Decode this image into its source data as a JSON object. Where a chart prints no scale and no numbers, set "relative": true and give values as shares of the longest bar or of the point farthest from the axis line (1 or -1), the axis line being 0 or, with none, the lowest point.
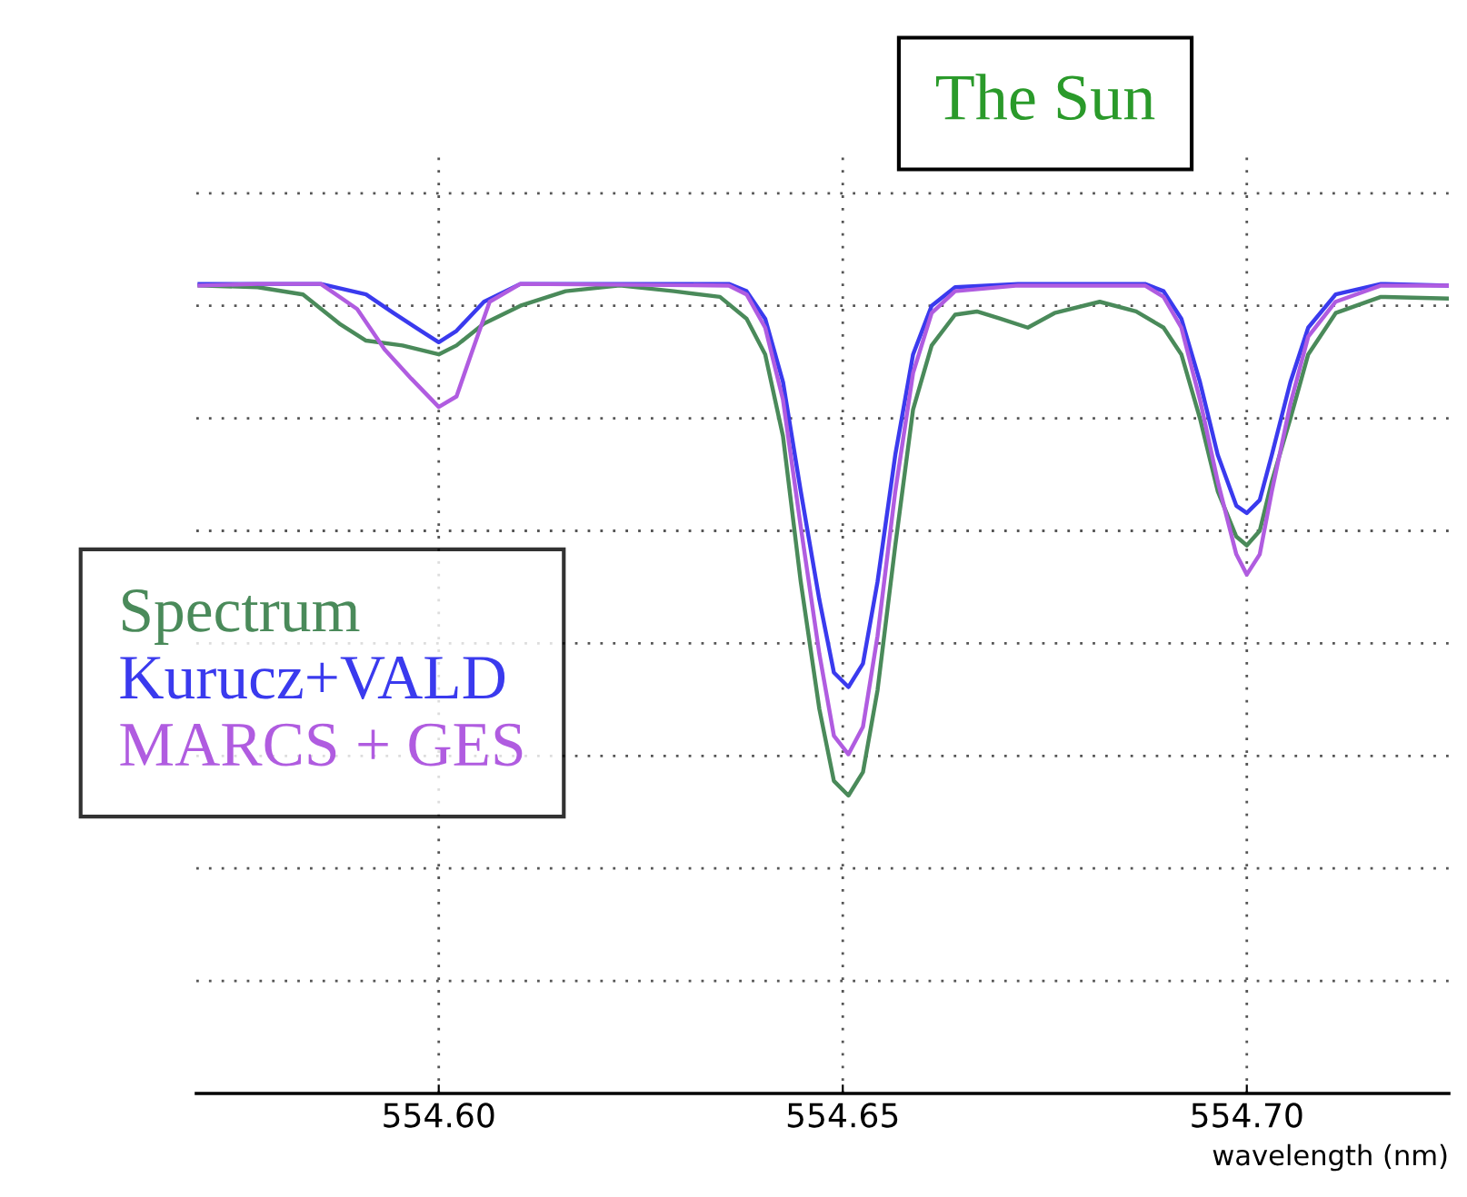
{
  "chart_data": {
    "type": "line",
    "title": "The Sun",
    "xlabel": "wavelength (nm)",
    "relative": true,
    "xlim": [
      554.57,
      554.725
    ],
    "xticks": [
      {
        "value": 554.6,
        "label": "554.60"
      },
      {
        "value": 554.65,
        "label": "554.65"
      },
      {
        "value": 554.7,
        "label": "554.70"
      }
    ],
    "grid": true,
    "legend": "left",
    "tick_labels": "x",
    "series": [
      {
        "name": "Spectrum",
        "color": "#4a8a5a",
        "x": [
          554.5704,
          554.5776,
          554.5832,
          554.5877,
          554.591,
          554.5955,
          554.6,
          554.6022,
          554.6056,
          554.6101,
          554.6157,
          554.6224,
          554.6291,
          554.6348,
          554.6381,
          554.6404,
          554.6426,
          554.6448,
          554.6471,
          554.6489,
          554.6507,
          554.6525,
          554.6543,
          554.6565,
          554.6587,
          554.661,
          554.6639,
          554.6666,
          554.6695,
          554.6729,
          554.6762,
          554.6818,
          554.6863,
          554.6897,
          554.6919,
          554.6942,
          554.6964,
          554.6987,
          554.7,
          554.7016,
          554.7031,
          554.7054,
          554.7076,
          554.711,
          554.7166,
          554.7248
        ],
        "values": [
          0.998,
          0.996,
          0.987,
          0.951,
          0.93,
          0.924,
          0.913,
          0.924,
          0.951,
          0.973,
          0.991,
          0.998,
          0.991,
          0.984,
          0.957,
          0.913,
          0.812,
          0.632,
          0.475,
          0.386,
          0.368,
          0.397,
          0.498,
          0.677,
          0.845,
          0.924,
          0.962,
          0.966,
          0.957,
          0.946,
          0.964,
          0.978,
          0.966,
          0.946,
          0.913,
          0.834,
          0.744,
          0.688,
          0.677,
          0.695,
          0.756,
          0.834,
          0.913,
          0.964,
          0.984,
          0.982
        ]
      },
      {
        "name": "Kurucz+VALD",
        "color": "#3a3aee",
        "x": [
          554.5704,
          554.5776,
          554.5854,
          554.591,
          554.5944,
          554.5978,
          554.6,
          554.6022,
          554.6056,
          554.6101,
          554.6202,
          554.6359,
          554.6381,
          554.6404,
          554.6426,
          554.6448,
          554.6471,
          554.6489,
          554.6507,
          554.6525,
          554.6543,
          554.6565,
          554.6587,
          554.661,
          554.6639,
          554.6717,
          554.6874,
          554.6897,
          554.6919,
          554.6942,
          554.6964,
          554.6987,
          554.7,
          554.7016,
          554.7031,
          554.7054,
          554.7076,
          554.711,
          554.7166,
          554.7248
        ],
        "values": [
          1.0,
          1.0,
          1.0,
          0.987,
          0.964,
          0.942,
          0.928,
          0.942,
          0.978,
          1.0,
          1.0,
          1.0,
          0.991,
          0.957,
          0.879,
          0.744,
          0.61,
          0.52,
          0.502,
          0.531,
          0.632,
          0.789,
          0.913,
          0.973,
          0.996,
          1.0,
          1.0,
          0.991,
          0.957,
          0.879,
          0.789,
          0.726,
          0.717,
          0.733,
          0.789,
          0.879,
          0.946,
          0.987,
          1.0,
          0.998
        ]
      },
      {
        "name": "MARCS + GES",
        "color": "#b05ce0",
        "x": [
          554.5704,
          554.5776,
          554.5854,
          554.5899,
          554.5933,
          554.5966,
          554.6,
          554.6022,
          554.604,
          554.6063,
          554.6101,
          554.6359,
          554.6381,
          554.6404,
          554.6426,
          554.6448,
          554.6471,
          554.6489,
          554.6507,
          554.6525,
          554.6543,
          554.6565,
          554.6587,
          554.661,
          554.6639,
          554.6717,
          554.6874,
          554.6897,
          554.6919,
          554.6942,
          554.6964,
          554.6987,
          554.7,
          554.7016,
          554.7031,
          554.7054,
          554.7076,
          554.711,
          554.7166,
          554.7248
        ],
        "values": [
          0.998,
          1.0,
          1.0,
          0.969,
          0.919,
          0.883,
          0.848,
          0.861,
          0.913,
          0.978,
          1.0,
          0.998,
          0.987,
          0.946,
          0.857,
          0.7,
          0.543,
          0.442,
          0.419,
          0.453,
          0.565,
          0.744,
          0.89,
          0.964,
          0.991,
          0.998,
          0.998,
          0.984,
          0.946,
          0.857,
          0.756,
          0.666,
          0.641,
          0.666,
          0.744,
          0.852,
          0.935,
          0.978,
          0.998,
          0.998
        ]
      }
    ]
  }
}
